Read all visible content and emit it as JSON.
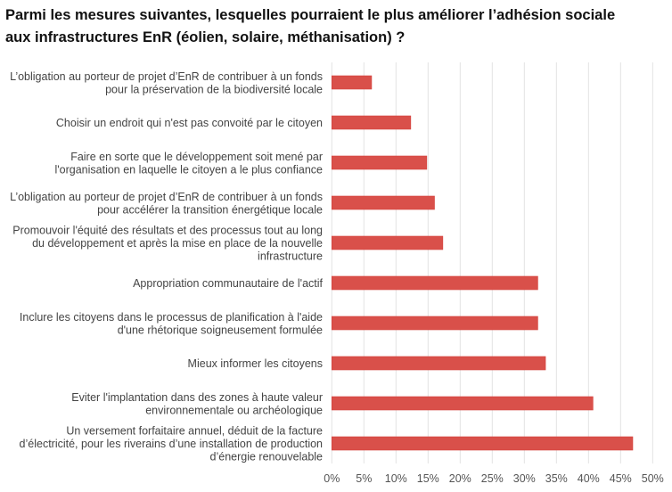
{
  "chart_data": {
    "type": "bar",
    "orientation": "horizontal",
    "title": [
      "Parmi les mesures suivantes, lesquelles pourraient le plus améliorer l’adhésion sociale",
      "aux infrastructures EnR (éolien, solaire, méthanisation) ?"
    ],
    "categories": [
      [
        "L’obligation au porteur de projet d’EnR de contribuer à un fonds",
        "pour la préservation de la biodiversité locale"
      ],
      [
        "Choisir un endroit qui n'est pas convoité par le citoyen"
      ],
      [
        "Faire en sorte que le développement soit mené par",
        "l'organisation en laquelle le citoyen a le plus confiance"
      ],
      [
        "L’obligation au porteur de projet d’EnR de contribuer à un fonds",
        "pour accélérer la transition énergétique locale"
      ],
      [
        "Promouvoir l'équité des résultats et des processus tout au long",
        "du développement et après la mise en place de la nouvelle",
        "infrastructure"
      ],
      [
        "Appropriation communautaire de l'actif"
      ],
      [
        "Inclure les citoyens dans le processus de planification à l'aide",
        "d'une rhétorique soigneusement formulée"
      ],
      [
        "Mieux informer les citoyens"
      ],
      [
        "Eviter l'implantation dans des zones à haute valeur",
        "environnementale ou archéologique"
      ],
      [
        "Un  versement forfaitaire annuel, déduit de la facture",
        "d’électricité, pour les riverains d’une installation de production",
        "d’énergie renouvelable"
      ]
    ],
    "values": [
      6.2,
      12.3,
      14.8,
      16.0,
      17.3,
      32.1,
      32.1,
      33.3,
      40.7,
      46.9
    ],
    "xlim": [
      0,
      50
    ],
    "xticks": [
      "0%",
      "5%",
      "10%",
      "15%",
      "20%",
      "25%",
      "30%",
      "35%",
      "40%",
      "45%",
      "50%"
    ],
    "grid": true,
    "legend": "none",
    "bar_color": "#d9504a",
    "grid_color": "#e3e3e3"
  }
}
